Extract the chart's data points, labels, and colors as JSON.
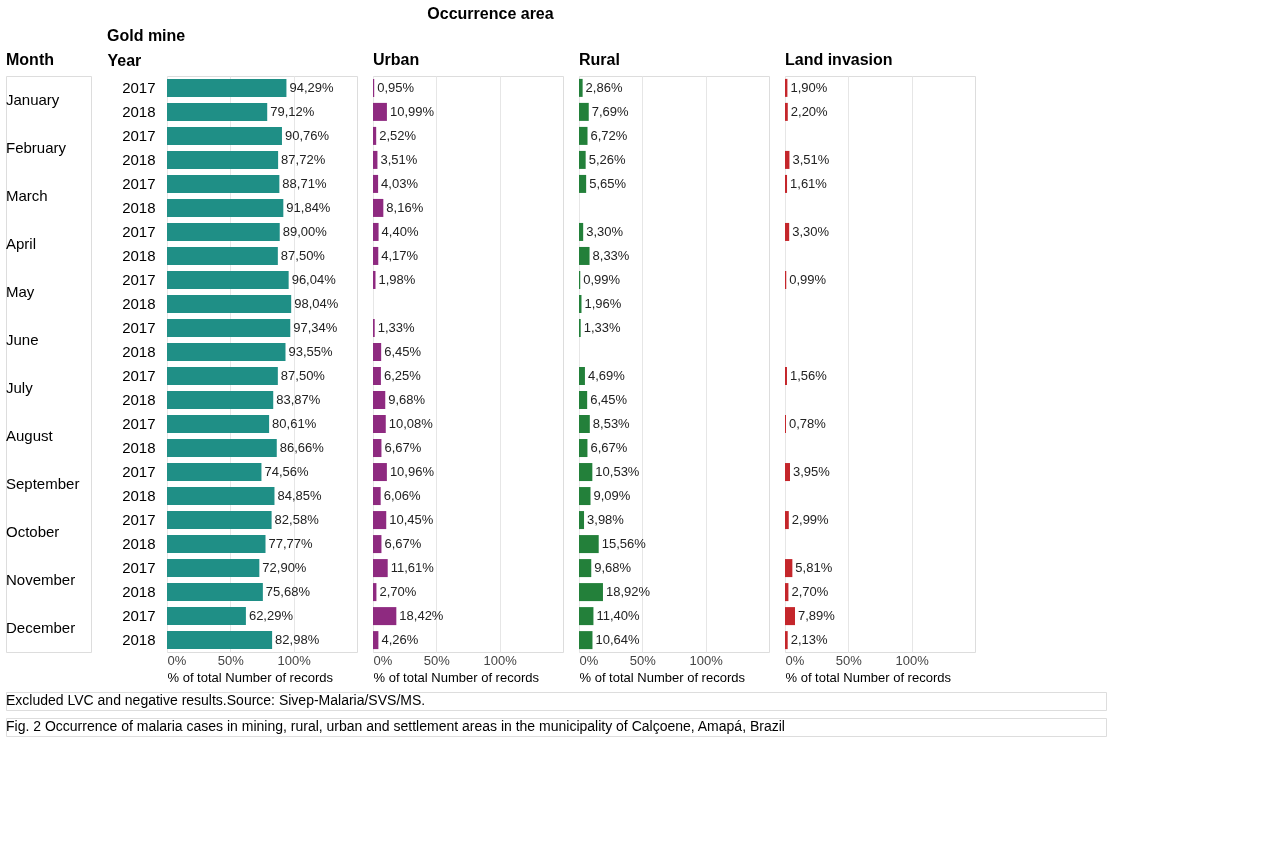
{
  "chart_data": [
    {
      "type": "other",
      "title": "Occurrence area",
      "annotations": [
        "Month",
        "Year",
        "January",
        "February",
        "March",
        "April",
        "May",
        "June",
        "July",
        "August",
        "September",
        "October",
        "November",
        "December",
        "Excluded LVC and negative results.Source: Sivep-Malaria/SVS/MS.",
        "Fig. 2 Occurrence of malaria cases in mining, rural, urban and settlement areas in the municipality of Calçoene, Amapá, Brazil"
      ]
    },
    {
      "type": "bar",
      "orientation": "horizontal",
      "title": "Gold mine",
      "xlabel": "% of total Number of records",
      "color": "#1f8f86",
      "xlim": [
        0,
        150
      ],
      "xticks": [
        {
          "value": 0,
          "label": "0%"
        },
        {
          "value": 50,
          "label": "50%"
        },
        {
          "value": 100,
          "label": "100%"
        }
      ],
      "grid": "x",
      "categories": [
        "2017",
        "2018",
        "2017",
        "2018",
        "2017",
        "2018",
        "2017",
        "2018",
        "2017",
        "2018",
        "2017",
        "2018",
        "2017",
        "2018",
        "2017",
        "2018",
        "2017",
        "2018",
        "2017",
        "2018",
        "2017",
        "2018",
        "2017",
        "2018"
      ],
      "values": [
        94.29,
        79.12,
        90.76,
        87.72,
        88.71,
        91.84,
        89.0,
        87.5,
        96.04,
        98.04,
        97.34,
        93.55,
        87.5,
        83.87,
        80.61,
        86.66,
        74.56,
        84.85,
        82.58,
        77.77,
        72.9,
        75.68,
        62.29,
        82.98
      ],
      "value_labels": [
        "94,29%",
        "79,12%",
        "90,76%",
        "87,72%",
        "88,71%",
        "91,84%",
        "89,00%",
        "87,50%",
        "96,04%",
        "98,04%",
        "97,34%",
        "93,55%",
        "87,50%",
        "83,87%",
        "80,61%",
        "86,66%",
        "74,56%",
        "84,85%",
        "82,58%",
        "77,77%",
        "72,90%",
        "75,68%",
        "62,29%",
        "82,98%"
      ]
    },
    {
      "type": "bar",
      "orientation": "horizontal",
      "title": "Urban",
      "xlabel": "% of total Number of records",
      "color": "#8e2a80",
      "xlim": [
        0,
        150
      ],
      "xticks": [
        {
          "value": 0,
          "label": "0%"
        },
        {
          "value": 50,
          "label": "50%"
        },
        {
          "value": 100,
          "label": "100%"
        }
      ],
      "grid": "x",
      "tick_labels": "x",
      "categories": [
        "2017",
        "2018",
        "2017",
        "2018",
        "2017",
        "2018",
        "2017",
        "2018",
        "2017",
        "2018",
        "2017",
        "2018",
        "2017",
        "2018",
        "2017",
        "2018",
        "2017",
        "2018",
        "2017",
        "2018",
        "2017",
        "2018",
        "2017",
        "2018"
      ],
      "values": [
        0.95,
        10.99,
        2.52,
        3.51,
        4.03,
        8.16,
        4.4,
        4.17,
        1.98,
        null,
        1.33,
        6.45,
        6.25,
        9.68,
        10.08,
        6.67,
        10.96,
        6.06,
        10.45,
        6.67,
        11.61,
        2.7,
        18.42,
        4.26
      ],
      "value_labels": [
        "0,95%",
        "10,99%",
        "2,52%",
        "3,51%",
        "4,03%",
        "8,16%",
        "4,40%",
        "4,17%",
        "1,98%",
        null,
        "1,33%",
        "6,45%",
        "6,25%",
        "9,68%",
        "10,08%",
        "6,67%",
        "10,96%",
        "6,06%",
        "10,45%",
        "6,67%",
        "11,61%",
        "2,70%",
        "18,42%",
        "4,26%"
      ]
    },
    {
      "type": "bar",
      "orientation": "horizontal",
      "title": "Rural",
      "xlabel": "% of total Number of records",
      "color": "#23803a",
      "xlim": [
        0,
        150
      ],
      "xticks": [
        {
          "value": 0,
          "label": "0%"
        },
        {
          "value": 50,
          "label": "50%"
        },
        {
          "value": 100,
          "label": "100%"
        }
      ],
      "grid": "x",
      "tick_labels": "x",
      "categories": [
        "2017",
        "2018",
        "2017",
        "2018",
        "2017",
        "2018",
        "2017",
        "2018",
        "2017",
        "2018",
        "2017",
        "2018",
        "2017",
        "2018",
        "2017",
        "2018",
        "2017",
        "2018",
        "2017",
        "2018",
        "2017",
        "2018",
        "2017",
        "2018"
      ],
      "values": [
        2.86,
        7.69,
        6.72,
        5.26,
        5.65,
        null,
        3.3,
        8.33,
        0.99,
        1.96,
        1.33,
        null,
        4.69,
        6.45,
        8.53,
        6.67,
        10.53,
        9.09,
        3.98,
        15.56,
        9.68,
        18.92,
        11.4,
        10.64
      ],
      "value_labels": [
        "2,86%",
        "7,69%",
        "6,72%",
        "5,26%",
        "5,65%",
        null,
        "3,30%",
        "8,33%",
        "0,99%",
        "1,96%",
        "1,33%",
        null,
        "4,69%",
        "6,45%",
        "8,53%",
        "6,67%",
        "10,53%",
        "9,09%",
        "3,98%",
        "15,56%",
        "9,68%",
        "18,92%",
        "11,40%",
        "10,64%"
      ]
    },
    {
      "type": "bar",
      "orientation": "horizontal",
      "title": "Land invasion",
      "xlabel": "% of total Number of records",
      "color": "#c4262b",
      "xlim": [
        0,
        150
      ],
      "xticks": [
        {
          "value": 0,
          "label": "0%"
        },
        {
          "value": 50,
          "label": "50%"
        },
        {
          "value": 100,
          "label": "100%"
        }
      ],
      "grid": "x",
      "tick_labels": "x",
      "categories": [
        "2017",
        "2018",
        "2017",
        "2018",
        "2017",
        "2018",
        "2017",
        "2018",
        "2017",
        "2018",
        "2017",
        "2018",
        "2017",
        "2018",
        "2017",
        "2018",
        "2017",
        "2018",
        "2017",
        "2018",
        "2017",
        "2018",
        "2017",
        "2018"
      ],
      "values": [
        1.9,
        2.2,
        null,
        3.51,
        1.61,
        null,
        3.3,
        null,
        0.99,
        null,
        null,
        null,
        1.56,
        null,
        0.78,
        null,
        3.95,
        null,
        2.99,
        null,
        5.81,
        2.7,
        7.89,
        2.13
      ],
      "value_labels": [
        "1,90%",
        "2,20%",
        null,
        "3,51%",
        "1,61%",
        null,
        "3,30%",
        null,
        "0,99%",
        null,
        null,
        null,
        "1,56%",
        null,
        "0,78%",
        null,
        "3,95%",
        null,
        "2,99%",
        null,
        "5,81%",
        "2,70%",
        "7,89%",
        "2,13%"
      ]
    }
  ]
}
